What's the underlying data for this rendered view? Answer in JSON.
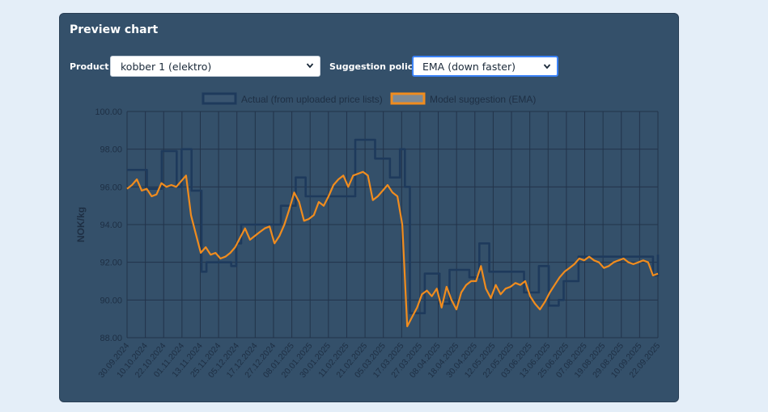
{
  "card": {
    "title": "Preview chart"
  },
  "controls": {
    "product_label": "Product",
    "product_value": "kobber 1 (elektro)",
    "policy_label": "Suggestion policy",
    "policy_value": "EMA (down faster)"
  },
  "colors": {
    "actual": "#1e3a5c",
    "suggestion": "#f08c1e",
    "grid": "#22334a",
    "text": "#1e2f44"
  },
  "chart_data": {
    "type": "line",
    "title": "",
    "xlabel": "",
    "ylabel": "NOK/kg",
    "ylim": [
      88,
      100
    ],
    "y_ticks": [
      "100.00",
      "98.00",
      "96.00",
      "94.00",
      "92.00",
      "90.00",
      "88.00"
    ],
    "grid": true,
    "legend_position": "top-center",
    "x_labels": [
      "30.09.2024",
      "10.10.2024",
      "22.10.2024",
      "01.11.2024",
      "13.11.2024",
      "25.11.2024",
      "05.12.2024",
      "17.12.2024",
      "27.12.2024",
      "08.01.2025",
      "20.01.2025",
      "30.01.2025",
      "11.02.2025",
      "21.02.2025",
      "05.03.2025",
      "17.03.2025",
      "27.03.2025",
      "08.04.2025",
      "18.04.2025",
      "30.04.2025",
      "12.05.2025",
      "22.05.2025",
      "03.06.2025",
      "13.06.2025",
      "25.06.2025",
      "07.08.2025",
      "19.08.2025",
      "29.08.2025",
      "10.09.2025",
      "22.09.2025"
    ],
    "series": [
      {
        "name": "Actual (from uploaded price lists)",
        "values": [
          96.9,
          96.9,
          96.9,
          96.9,
          95.9,
          95.9,
          95.9,
          97.9,
          97.9,
          97.9,
          96.0,
          98.0,
          98.0,
          95.8,
          95.8,
          91.5,
          92.0,
          92.0,
          92.0,
          92.0,
          92.0,
          91.8,
          93.0,
          94.0,
          94.0,
          94.0,
          94.0,
          94.0,
          94.0,
          94.0,
          94.0,
          95.0,
          95.0,
          95.0,
          96.5,
          96.5,
          95.5,
          95.5,
          95.5,
          95.5,
          95.5,
          95.5,
          95.5,
          95.5,
          95.5,
          95.5,
          98.5,
          98.5,
          98.5,
          98.5,
          97.5,
          97.5,
          97.5,
          96.5,
          96.5,
          98.0,
          96.0,
          89.3,
          89.3,
          89.3,
          91.4,
          91.4,
          91.4,
          89.8,
          89.8,
          91.6,
          91.6,
          91.6,
          91.6,
          91.2,
          91.2,
          93.0,
          93.0,
          91.5,
          91.5,
          91.5,
          91.5,
          91.5,
          91.5,
          91.5,
          90.4,
          90.4,
          90.4,
          91.8,
          91.8,
          89.7,
          89.7,
          90.0,
          91.0,
          91.0,
          91.0,
          92.3,
          92.3,
          92.3,
          92.3,
          92.3,
          92.3,
          92.3,
          92.3,
          92.3,
          92.3,
          92.3,
          92.3,
          92.3,
          92.3,
          92.3,
          91.3,
          92.4
        ]
      },
      {
        "name": "Model suggestion (EMA)",
        "values": [
          95.9,
          96.1,
          96.4,
          95.8,
          95.9,
          95.5,
          95.6,
          96.2,
          96.0,
          96.1,
          96.0,
          96.3,
          96.6,
          94.5,
          93.5,
          92.5,
          92.8,
          92.4,
          92.5,
          92.2,
          92.3,
          92.5,
          92.8,
          93.3,
          93.8,
          93.2,
          93.4,
          93.6,
          93.8,
          93.9,
          93.0,
          93.4,
          94.0,
          94.8,
          95.7,
          95.2,
          94.2,
          94.3,
          94.5,
          95.2,
          95.0,
          95.5,
          96.1,
          96.4,
          96.6,
          96.0,
          96.6,
          96.7,
          96.8,
          96.6,
          95.3,
          95.5,
          95.8,
          96.1,
          95.7,
          95.5,
          94.0,
          88.6,
          89.1,
          89.6,
          90.3,
          90.5,
          90.2,
          90.6,
          89.6,
          90.7,
          90.0,
          89.5,
          90.4,
          90.8,
          91.0,
          91.0,
          91.8,
          90.6,
          90.1,
          90.8,
          90.3,
          90.6,
          90.7,
          90.9,
          90.8,
          91.0,
          90.2,
          89.8,
          89.5,
          89.9,
          90.4,
          90.8,
          91.2,
          91.5,
          91.7,
          91.9,
          92.2,
          92.1,
          92.3,
          92.1,
          92.0,
          91.7,
          91.8,
          92.0,
          92.1,
          92.2,
          92.0,
          91.9,
          92.0,
          92.1,
          92.0,
          91.3,
          91.4
        ]
      }
    ]
  }
}
